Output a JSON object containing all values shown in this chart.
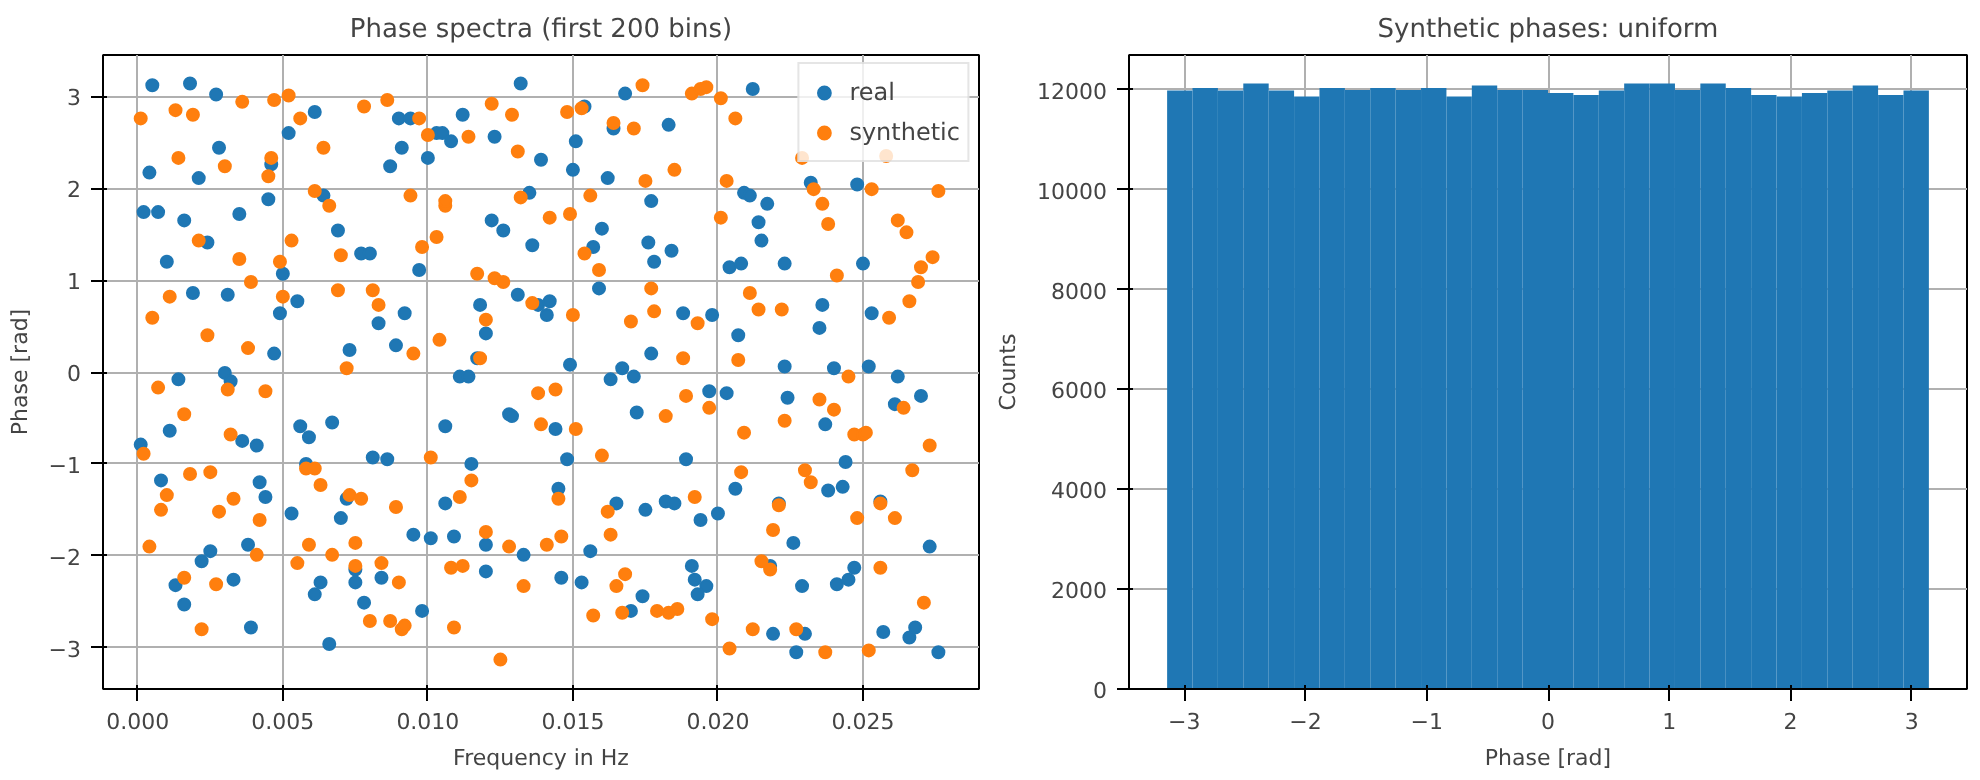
{
  "chart_data": [
    {
      "type": "scatter",
      "title": "Phase spectra (first 200 bins)",
      "xlabel": "Frequency in Hz",
      "ylabel": "Phase [rad]",
      "xlim": [
        -0.0012,
        0.029
      ],
      "ylim": [
        -3.45,
        3.45
      ],
      "xticks": [
        {
          "value": 0,
          "label": "0.000"
        },
        {
          "value": 0.005,
          "label": "0.005"
        },
        {
          "value": 0.01,
          "label": "0.010"
        },
        {
          "value": 0.015,
          "label": "0.015"
        },
        {
          "value": 0.02,
          "label": "0.020"
        },
        {
          "value": 0.025,
          "label": "0.025"
        }
      ],
      "yticks": [
        {
          "value": -3,
          "label": "−3"
        },
        {
          "value": -2,
          "label": "−2"
        },
        {
          "value": -1,
          "label": "−1"
        },
        0,
        1,
        2,
        3
      ],
      "grid": true,
      "legend": "top right",
      "marker": "circle",
      "series": [
        {
          "name": "real",
          "color": "#1f77b4",
          "x": [
            0.0005,
            0.0004,
            0.0002,
            0.0007,
            0.001,
            0.0016,
            0.0018,
            0.0021,
            0.0027,
            0.0028,
            0.0024,
            0.0019,
            0.0031,
            0.0035,
            0.0046,
            0.0045,
            0.0049,
            0.005,
            0.0052,
            0.0055,
            0.0061,
            0.0064,
            0.0069,
            0.0077,
            0.008,
            0.0083,
            0.0087,
            0.0091,
            0.009,
            0.0094,
            0.0092,
            0.0097,
            0.01,
            0.0103,
            0.0105,
            0.0108,
            0.0112,
            0.0118,
            0.0122,
            0.0123,
            0.0126,
            0.0131,
            0.0132,
            0.0168,
            0.0154,
            0.0151,
            0.0164,
            0.0183,
            0.0139,
            0.015,
            0.0162,
            0.0135,
            0.0177,
            0.0136,
            0.016,
            0.0157,
            0.0176,
            0.0184,
            0.0178,
            0.0159,
            0.0138,
            0.0142,
            0.0141,
            0.0188,
            0.0198,
            0.0204,
            0.0208,
            0.0209,
            0.0211,
            0.0217,
            0.0214,
            0.0215,
            0.0223,
            0.0232,
            0.0236,
            0.0235,
            0.0248,
            0.025,
            0.0253,
            0.0212,
            0.0001,
            0.0008,
            0.0011,
            0.0014,
            0.0013,
            0.0016,
            0.0022,
            0.0025,
            0.003,
            0.0032,
            0.0036,
            0.0041,
            0.0033,
            0.0038,
            0.0039,
            0.0042,
            0.0044,
            0.0047,
            0.0053,
            0.0056,
            0.0058,
            0.0059,
            0.0061,
            0.0063,
            0.0066,
            0.0067,
            0.007,
            0.0072,
            0.0073,
            0.0075,
            0.0075,
            0.0078,
            0.0081,
            0.0084,
            0.0086,
            0.0089,
            0.0095,
            0.0098,
            0.0101,
            0.0106,
            0.0106,
            0.0109,
            0.0111,
            0.0114,
            0.0115,
            0.0117,
            0.012,
            0.012,
            0.012,
            0.0128,
            0.0129,
            0.0133,
            0.0149,
            0.0163,
            0.0167,
            0.0171,
            0.0177,
            0.0172,
            0.0144,
            0.0148,
            0.0145,
            0.0165,
            0.0175,
            0.0182,
            0.0185,
            0.0189,
            0.0194,
            0.02,
            0.0197,
            0.0203,
            0.0207,
            0.0206,
            0.0156,
            0.0146,
            0.0153,
            0.0174,
            0.017,
            0.0191,
            0.0192,
            0.0196,
            0.0193,
            0.0223,
            0.0224,
            0.0237,
            0.024,
            0.0244,
            0.0238,
            0.0243,
            0.0221,
            0.0226,
            0.0218,
            0.0229,
            0.0241,
            0.0245,
            0.0247,
            0.0252,
            0.0262,
            0.0261,
            0.027,
            0.0256,
            0.0273,
            0.0257,
            0.0266,
            0.0268,
            0.0276,
            0.0219,
            0.023,
            0.0227
          ],
          "values": [
            3.12,
            2.17,
            1.74,
            1.74,
            1.2,
            1.65,
            3.14,
            2.11,
            3.02,
            2.44,
            1.41,
            0.86,
            0.84,
            1.72,
            2.26,
            1.88,
            0.64,
            1.07,
            2.6,
            0.77,
            2.83,
            1.92,
            1.54,
            1.29,
            1.29,
            0.53,
            2.24,
            2.44,
            2.76,
            2.76,
            0.64,
            1.11,
            2.33,
            2.6,
            2.6,
            2.51,
            2.8,
            0.73,
            1.65,
            2.56,
            1.54,
            0.84,
            3.14,
            3.03,
            2.89,
            2.51,
            2.65,
            2.69,
            2.31,
            2.2,
            2.11,
            1.95,
            1.86,
            1.38,
            1.56,
            1.36,
            1.41,
            1.32,
            1.2,
            0.91,
            0.73,
            0.77,
            0.62,
            0.64,
            0.62,
            1.14,
            1.18,
            1.95,
            1.92,
            1.83,
            1.63,
            1.43,
            1.18,
            2.06,
            0.73,
            0.48,
            2.04,
            1.18,
            0.64,
            3.08,
            -0.79,
            -1.18,
            -0.64,
            -0.08,
            -2.32,
            -2.53,
            -2.06,
            -1.95,
            -0.01,
            -0.1,
            -0.75,
            -0.8,
            -2.26,
            -1.88,
            -2.78,
            -1.2,
            -1.36,
            0.2,
            -1.54,
            -0.59,
            -1.0,
            -0.71,
            -2.42,
            -2.29,
            -2.96,
            -0.55,
            -1.59,
            -1.38,
            0.24,
            -2.15,
            -2.29,
            -2.51,
            -0.93,
            -2.24,
            -0.95,
            0.29,
            -1.77,
            -2.6,
            -1.81,
            -0.59,
            -1.43,
            -1.79,
            -0.05,
            -0.05,
            -1.0,
            0.15,
            -1.88,
            0.42,
            -2.17,
            -0.46,
            -0.48,
            -1.99,
            0.08,
            -0.08,
            0.04,
            -0.05,
            0.2,
            -0.44,
            -0.62,
            -0.95,
            -1.27,
            -1.43,
            -1.5,
            -1.41,
            -1.43,
            -0.95,
            -1.61,
            -1.54,
            -0.21,
            -0.23,
            0.4,
            -1.27,
            -1.95,
            -2.24,
            -2.29,
            -2.44,
            -2.6,
            -2.11,
            -2.26,
            -2.33,
            -2.42,
            0.06,
            -0.28,
            -0.57,
            0.04,
            -0.98,
            -1.29,
            -1.25,
            -1.43,
            -1.86,
            -2.11,
            -2.33,
            -2.31,
            -2.26,
            -2.13,
            0.06,
            -0.05,
            -0.35,
            -0.26,
            -1.41,
            -1.9,
            -2.83,
            -2.89,
            -2.78,
            -3.05,
            -2.85,
            -2.85,
            -3.05
          ]
        },
        {
          "name": "synthetic",
          "color": "#ff7f0e",
          "x": [
            0.0001,
            0.0005,
            0.0011,
            0.0013,
            0.0014,
            0.0019,
            0.0021,
            0.003,
            0.0036,
            0.0035,
            0.0039,
            0.0045,
            0.0046,
            0.0047,
            0.0049,
            0.005,
            0.0052,
            0.0053,
            0.0056,
            0.0061,
            0.0064,
            0.0066,
            0.007,
            0.0069,
            0.0078,
            0.0081,
            0.0083,
            0.0086,
            0.0094,
            0.0097,
            0.0098,
            0.01,
            0.0103,
            0.0106,
            0.0106,
            0.0114,
            0.0117,
            0.012,
            0.0122,
            0.0123,
            0.0126,
            0.0129,
            0.0131,
            0.0132,
            0.0148,
            0.0153,
            0.0164,
            0.0171,
            0.0174,
            0.0191,
            0.0194,
            0.0196,
            0.0201,
            0.0206,
            0.0229,
            0.0258,
            0.0156,
            0.0175,
            0.0185,
            0.0203,
            0.0142,
            0.0149,
            0.0154,
            0.0159,
            0.0136,
            0.015,
            0.017,
            0.0177,
            0.0178,
            0.0193,
            0.0201,
            0.0211,
            0.0214,
            0.0222,
            0.0233,
            0.0236,
            0.0238,
            0.0241,
            0.0253,
            0.0262,
            0.0265,
            0.027,
            0.0274,
            0.0269,
            0.0266,
            0.0259,
            0.0276,
            0.0007,
            0.0002,
            0.0004,
            0.0008,
            0.001,
            0.0016,
            0.0018,
            0.0016,
            0.0024,
            0.0022,
            0.0025,
            0.0027,
            0.0028,
            0.0031,
            0.0032,
            0.0033,
            0.0038,
            0.0041,
            0.0042,
            0.0044,
            0.0055,
            0.0058,
            0.0061,
            0.0059,
            0.0063,
            0.0067,
            0.0072,
            0.0073,
            0.0075,
            0.0075,
            0.0077,
            0.008,
            0.0084,
            0.0087,
            0.0089,
            0.009,
            0.0091,
            0.0092,
            0.0095,
            0.0101,
            0.0104,
            0.0108,
            0.0109,
            0.0111,
            0.0112,
            0.0115,
            0.0118,
            0.012,
            0.0128,
            0.0125,
            0.0133,
            0.0138,
            0.0144,
            0.0139,
            0.0151,
            0.016,
            0.0182,
            0.0189,
            0.0197,
            0.0188,
            0.0207,
            0.0209,
            0.0208,
            0.0223,
            0.0235,
            0.024,
            0.0245,
            0.0247,
            0.025,
            0.0251,
            0.0264,
            0.0273,
            0.0267,
            0.023,
            0.0232,
            0.0248,
            0.0261,
            0.0256,
            0.0221,
            0.0219,
            0.0215,
            0.0218,
            0.0192,
            0.0162,
            0.0163,
            0.0145,
            0.0141,
            0.0146,
            0.0168,
            0.0165,
            0.0157,
            0.0167,
            0.0179,
            0.0183,
            0.0186,
            0.0198,
            0.0204,
            0.0212,
            0.0227,
            0.0237,
            0.0252,
            0.0256,
            0.0271
          ],
          "values": [
            2.76,
            0.59,
            0.82,
            2.85,
            2.33,
            2.8,
            1.43,
            2.24,
            2.94,
            1.23,
            0.98,
            2.13,
            2.33,
            2.96,
            1.2,
            0.82,
            3.01,
            1.43,
            2.76,
            1.97,
            2.44,
            1.81,
            1.27,
            0.89,
            2.89,
            0.89,
            0.73,
            2.96,
            1.92,
            2.76,
            1.36,
            2.58,
            1.47,
            1.81,
            1.86,
            2.56,
            1.07,
            0.57,
            2.92,
            1.02,
            0.98,
            2.8,
            2.4,
            1.9,
            2.83,
            2.87,
            2.71,
            2.65,
            3.12,
            3.03,
            3.08,
            3.1,
            2.98,
            2.76,
            2.33,
            2.35,
            1.92,
            2.08,
            2.2,
            2.08,
            1.68,
            1.72,
            1.29,
            1.11,
            0.75,
            0.62,
            0.55,
            0.91,
            0.66,
            0.53,
            1.68,
            0.86,
            0.68,
            0.68,
            1.99,
            1.83,
            1.61,
            1.05,
            1.99,
            1.65,
            1.52,
            1.14,
            1.25,
            0.98,
            0.77,
            0.59,
            1.97,
            -0.17,
            -0.89,
            -1.9,
            -1.5,
            -1.34,
            -0.46,
            -1.11,
            -2.24,
            0.4,
            -2.8,
            -1.09,
            -2.31,
            -1.52,
            -0.19,
            -0.68,
            -1.38,
            0.26,
            -1.99,
            -1.61,
            -0.21,
            -2.08,
            -1.05,
            -1.05,
            -1.88,
            -1.23,
            -1.99,
            0.04,
            -1.34,
            -1.86,
            -2.11,
            -1.38,
            -2.71,
            -2.08,
            -2.71,
            -1.47,
            -2.29,
            -2.8,
            -2.76,
            0.2,
            -0.93,
            0.35,
            -2.13,
            -2.78,
            -1.36,
            -2.11,
            -1.18,
            0.15,
            -1.74,
            -1.9,
            -3.13,
            -2.33,
            -0.23,
            -0.19,
            -0.57,
            -0.62,
            -0.91,
            -0.48,
            -0.26,
            -0.39,
            0.15,
            0.13,
            -0.66,
            -1.09,
            -0.53,
            -0.3,
            -0.41,
            -0.05,
            -0.68,
            -0.68,
            -0.66,
            -0.39,
            -0.8,
            -1.07,
            -1.07,
            -1.2,
            -1.59,
            -1.59,
            -1.43,
            -1.45,
            -1.72,
            -2.06,
            -2.15,
            -1.36,
            -1.52,
            -1.77,
            -1.38,
            -1.88,
            -1.79,
            -2.2,
            -2.33,
            -2.65,
            -2.62,
            -2.6,
            -2.62,
            -2.58,
            -2.69,
            -3.01,
            -2.8,
            -2.8,
            -3.05,
            -3.03,
            -2.13,
            -2.51
          ]
        }
      ]
    },
    {
      "type": "histogram",
      "title": "Synthetic phases: uniform",
      "xlabel": "Phase [rad]",
      "ylabel": "Counts",
      "color": "#1f77b4",
      "bins": [
        -3.1416,
        -2.9322,
        -2.7227,
        -2.5133,
        -2.3038,
        -2.0944,
        -1.885,
        -1.6755,
        -1.4661,
        -1.2566,
        -1.0472,
        -0.8378,
        -0.6283,
        -0.4189,
        -0.2094,
        0,
        0.2094,
        0.4189,
        0.6283,
        0.8378,
        1.0472,
        1.2566,
        1.4661,
        1.6755,
        1.885,
        2.0944,
        2.3038,
        2.5133,
        2.7227,
        2.9322,
        3.1416
      ],
      "values": [
        11990,
        12040,
        11990,
        12130,
        11990,
        11870,
        12040,
        12000,
        12040,
        12000,
        12040,
        11870,
        12090,
        12000,
        12000,
        11940,
        11900,
        11990,
        12130,
        12130,
        12000,
        12130,
        12040,
        11900,
        11870,
        11940,
        11990,
        12090,
        11900,
        11990
      ],
      "xlim": [
        -3.456,
        3.456
      ],
      "ylim": [
        0,
        12700
      ],
      "xticks": [
        {
          "value": -3,
          "label": "−3"
        },
        {
          "value": -2,
          "label": "−2"
        },
        {
          "value": -1,
          "label": "−1"
        },
        0,
        1,
        2,
        3
      ],
      "yticks": [
        0,
        2000,
        4000,
        6000,
        8000,
        10000,
        12000
      ],
      "grid": true
    }
  ]
}
